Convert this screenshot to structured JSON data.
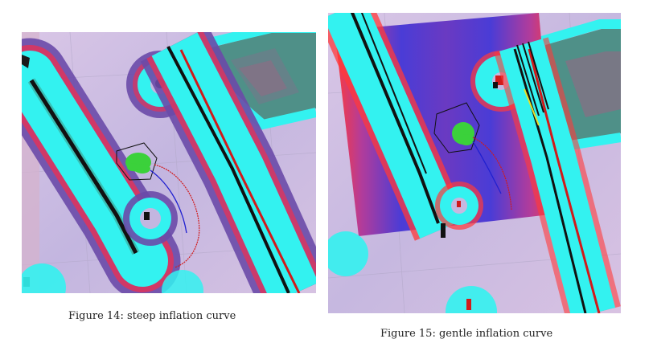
{
  "figures": [
    {
      "id": "14",
      "caption": "Figure 14: steep inflation curve"
    },
    {
      "id": "15",
      "caption": "Figure 15: gentle inflation curve"
    }
  ],
  "colors": {
    "background_costmap": "#c9b8dd",
    "inscribed": "#33f2f0",
    "lethal": "#111111",
    "inflation_high": "#ff3a3a",
    "inflation_low": "#4a3cd6",
    "obstacle_layer": "#6a4aa8",
    "robot_particles": "#3bd13b",
    "plan_global": "#d11a1a",
    "plan_local": "#2020d0",
    "unknown_block": "#4f9088"
  }
}
